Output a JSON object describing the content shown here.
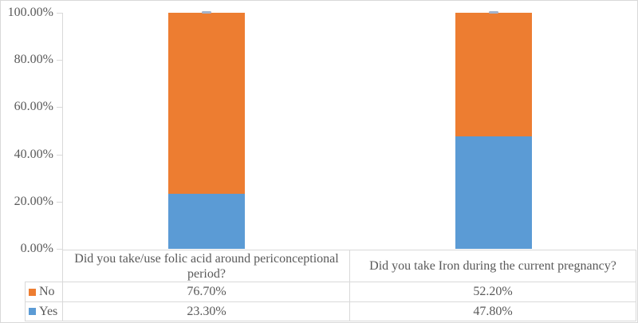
{
  "colors": {
    "no_orange": "#ED7D31",
    "yes_blue": "#5B9BD5",
    "axis_gray": "#D9D9D9",
    "text_gray": "#595959",
    "bar_top_notch": "#A3B3CC"
  },
  "chart_data": {
    "type": "bar",
    "stacked": true,
    "orientation": "vertical",
    "title": "",
    "xlabel": "",
    "ylabel": "",
    "categories": [
      "Did you take/use folic acid around periconceptional period?",
      "Did you take Iron during the current pregnancy?"
    ],
    "series": [
      {
        "name": "No",
        "color": "#ED7D31",
        "values": [
          76.7,
          52.2
        ],
        "value_labels": [
          "76.70%",
          "52.20%"
        ]
      },
      {
        "name": "Yes",
        "color": "#5B9BD5",
        "values": [
          23.3,
          47.8
        ],
        "value_labels": [
          "23.30%",
          "47.80%"
        ]
      }
    ],
    "ylim": [
      0,
      100
    ],
    "y_tick_labels": [
      "100.00%",
      "80.00%",
      "60.00%",
      "40.00%",
      "20.00%",
      "0.00%"
    ],
    "grid": false,
    "legend_position": "data-table-left"
  }
}
